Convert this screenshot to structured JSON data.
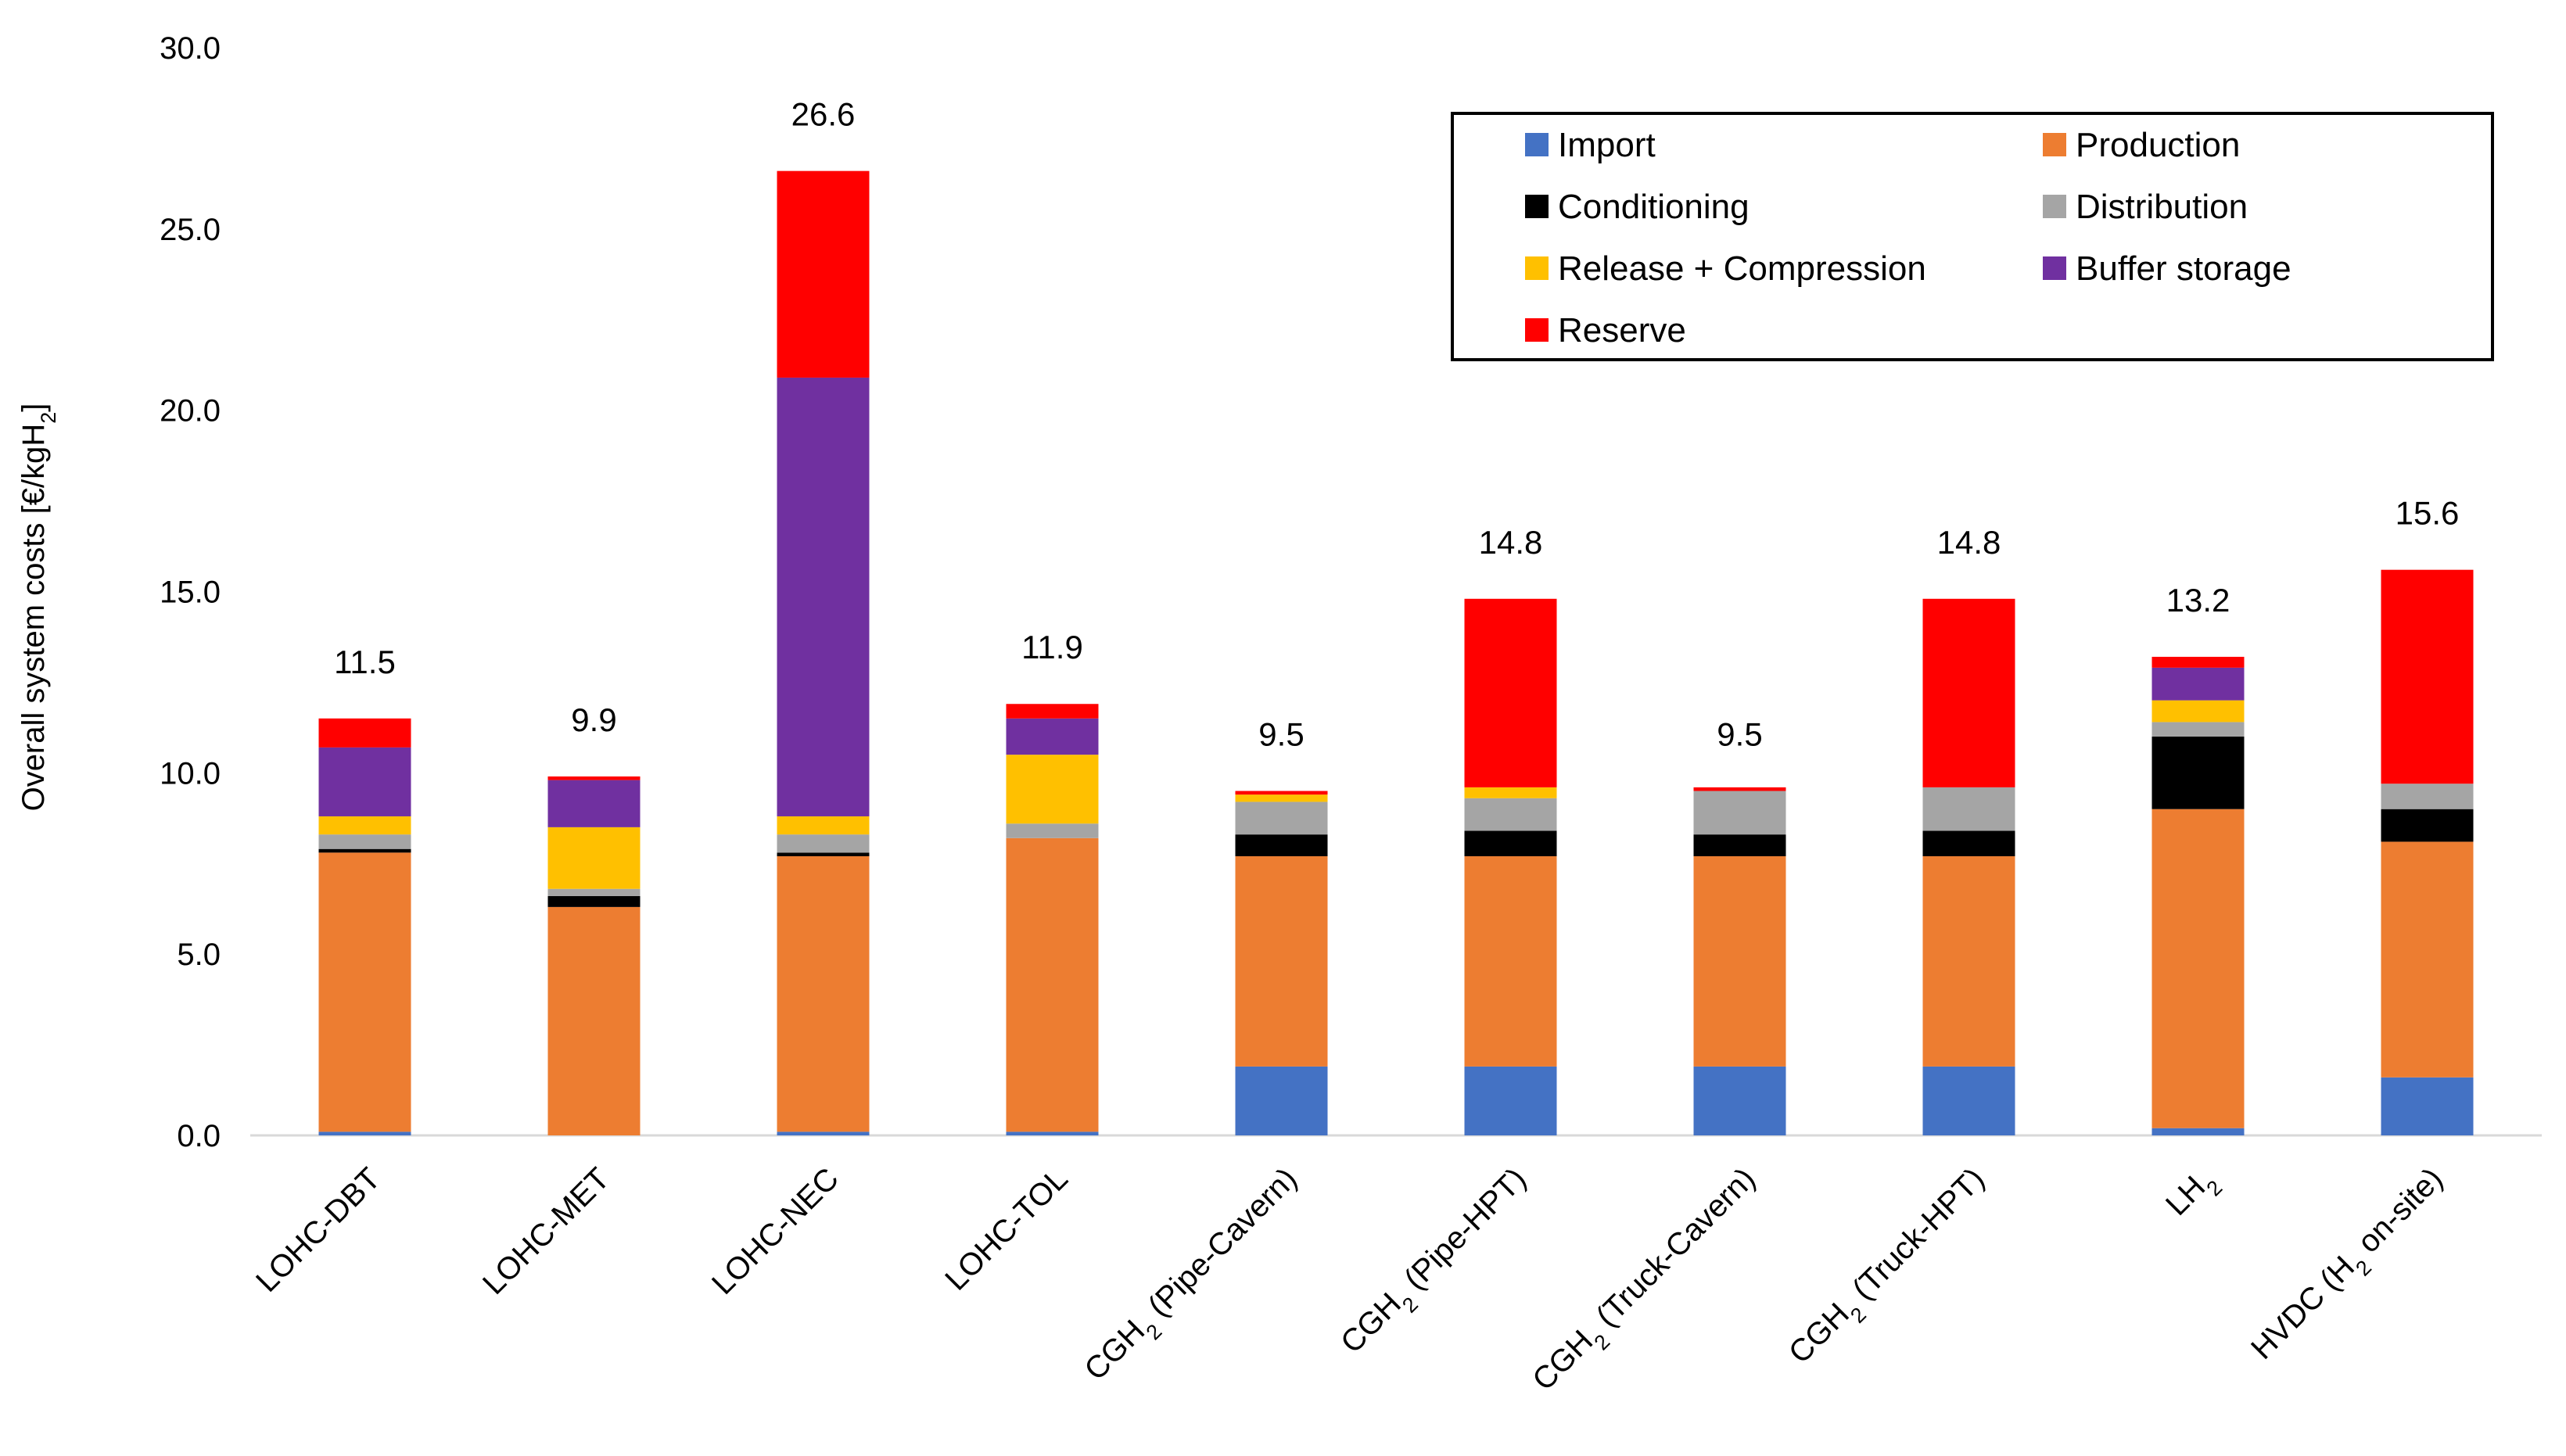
{
  "chart_data": {
    "type": "bar",
    "stacked": true,
    "title": "",
    "xlabel": "",
    "ylabel": "Overall system costs [€/kgH₂]",
    "ylim": [
      0,
      30
    ],
    "ytick_step": 5,
    "ytick_labels": [
      "0.0",
      "5.0",
      "10.0",
      "15.0",
      "20.0",
      "25.0",
      "30.0"
    ],
    "grid": false,
    "legend_position": "top-right",
    "categories": [
      "LOHC-DBT",
      "LOHC-MET",
      "LOHC-NEC",
      "LOHC-TOL",
      "CGH₂ (Pipe-Cavern)",
      "CGH₂ (Pipe-HPT)",
      "CGH₂ (Truck-Cavern)",
      "CGH₂ (Truck-HPT)",
      "LH₂",
      "HVDC (H₂ on-site)"
    ],
    "totals": [
      "11.5",
      "9.9",
      "26.6",
      "11.9",
      "9.5",
      "14.8",
      "9.5",
      "14.8",
      "13.2",
      "15.6"
    ],
    "series": [
      {
        "name": "Import",
        "color": "#4472C4",
        "values": [
          0.1,
          0.0,
          0.1,
          0.1,
          1.9,
          1.9,
          1.9,
          1.9,
          0.2,
          1.6
        ]
      },
      {
        "name": "Production",
        "color": "#ED7D31",
        "values": [
          7.7,
          6.3,
          7.6,
          8.1,
          5.8,
          5.8,
          5.8,
          5.8,
          8.8,
          6.5
        ]
      },
      {
        "name": "Conditioning",
        "color": "#000000",
        "values": [
          0.1,
          0.3,
          0.1,
          0.0,
          0.6,
          0.7,
          0.6,
          0.7,
          2.0,
          0.9
        ]
      },
      {
        "name": "Distribution",
        "color": "#A5A5A5",
        "values": [
          0.4,
          0.2,
          0.5,
          0.4,
          0.9,
          0.9,
          1.2,
          1.2,
          0.4,
          0.7
        ]
      },
      {
        "name": "Release + Compression",
        "color": "#FFC000",
        "values": [
          0.5,
          1.7,
          0.5,
          1.9,
          0.2,
          0.3,
          0.0,
          0.0,
          0.6,
          0.0
        ]
      },
      {
        "name": "Buffer storage",
        "color": "#7030A0",
        "values": [
          1.9,
          1.3,
          12.1,
          1.0,
          0.0,
          0.0,
          0.0,
          0.0,
          0.9,
          0.0
        ]
      },
      {
        "name": "Reserve",
        "color": "#FF0000",
        "values": [
          0.8,
          0.1,
          5.7,
          0.4,
          0.1,
          5.2,
          0.1,
          5.2,
          0.3,
          5.9
        ]
      }
    ]
  }
}
